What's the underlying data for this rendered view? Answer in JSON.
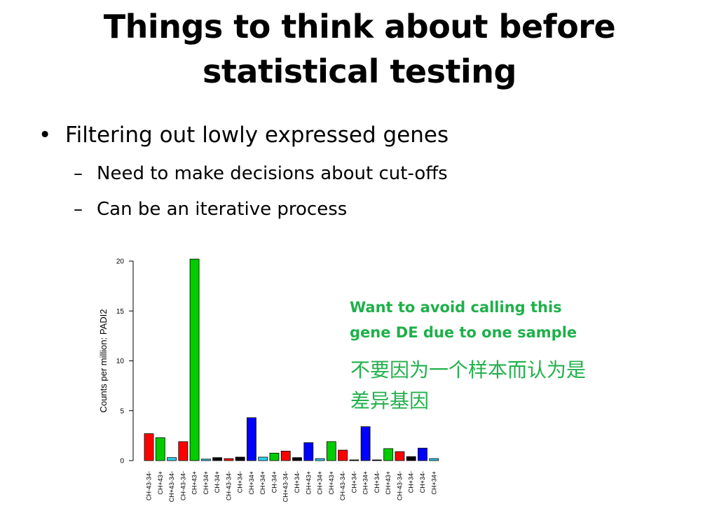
{
  "slide": {
    "title_line1": "Things to think about before",
    "title_line2": "statistical testing",
    "bullet1": "Filtering out lowly expressed genes",
    "sub1": "Need to make decisions about cut-offs",
    "sub2": "Can be an iterative process",
    "bullet_glyph": "•",
    "dash_glyph": "–",
    "callout_en_line1": "Want to avoid calling this",
    "callout_en_line2": "gene DE due to one sample",
    "callout_zh_line1": "不要因为一个样本而认为是",
    "callout_zh_line2": "差异基因",
    "callout_color": "#1fb04a"
  },
  "chart_data": {
    "type": "bar",
    "ylabel": "Counts per million: PADI2",
    "xlabel": "",
    "ylim": [
      0,
      20
    ],
    "yticks": [
      0,
      5,
      10,
      15,
      20
    ],
    "categories": [
      "CH-43-34-",
      "CH+43+",
      "CH+43-34-",
      "CH-43-34-",
      "CH+43+",
      "CH+34+",
      "CH-34+",
      "CH-43-34-",
      "CH+34-",
      "CH+34+",
      "CH+34+",
      "CH-34+",
      "CH+43-34-",
      "CH+34-",
      "CH+43+",
      "CH+34+",
      "CH+43+",
      "CH-43-34-",
      "CH+34-",
      "CH+34+",
      "CH+34-",
      "CH+43+",
      "CH-43-34-",
      "CH+34-",
      "CH+34-",
      "CH+34+"
    ],
    "values": [
      2.7,
      2.3,
      0.3,
      1.9,
      20.2,
      0.15,
      0.3,
      0.2,
      0.35,
      4.3,
      0.35,
      0.75,
      0.95,
      0.3,
      1.8,
      0.2,
      1.9,
      1.05,
      0.05,
      3.4,
      0.05,
      1.2,
      0.9,
      0.4,
      1.25,
      0.2
    ],
    "colors": [
      "#ff0000",
      "#00cc00",
      "#33ccee",
      "#ff0000",
      "#00cc00",
      "#33ccee",
      "#000000",
      "#ff0000",
      "#000000",
      "#0000ff",
      "#33ccee",
      "#00cc00",
      "#ff0000",
      "#000000",
      "#0000ff",
      "#33ccee",
      "#00cc00",
      "#ff0000",
      "#000000",
      "#0000ff",
      "#000000",
      "#00cc00",
      "#ff0000",
      "#000000",
      "#0000ff",
      "#33ccee"
    ]
  }
}
